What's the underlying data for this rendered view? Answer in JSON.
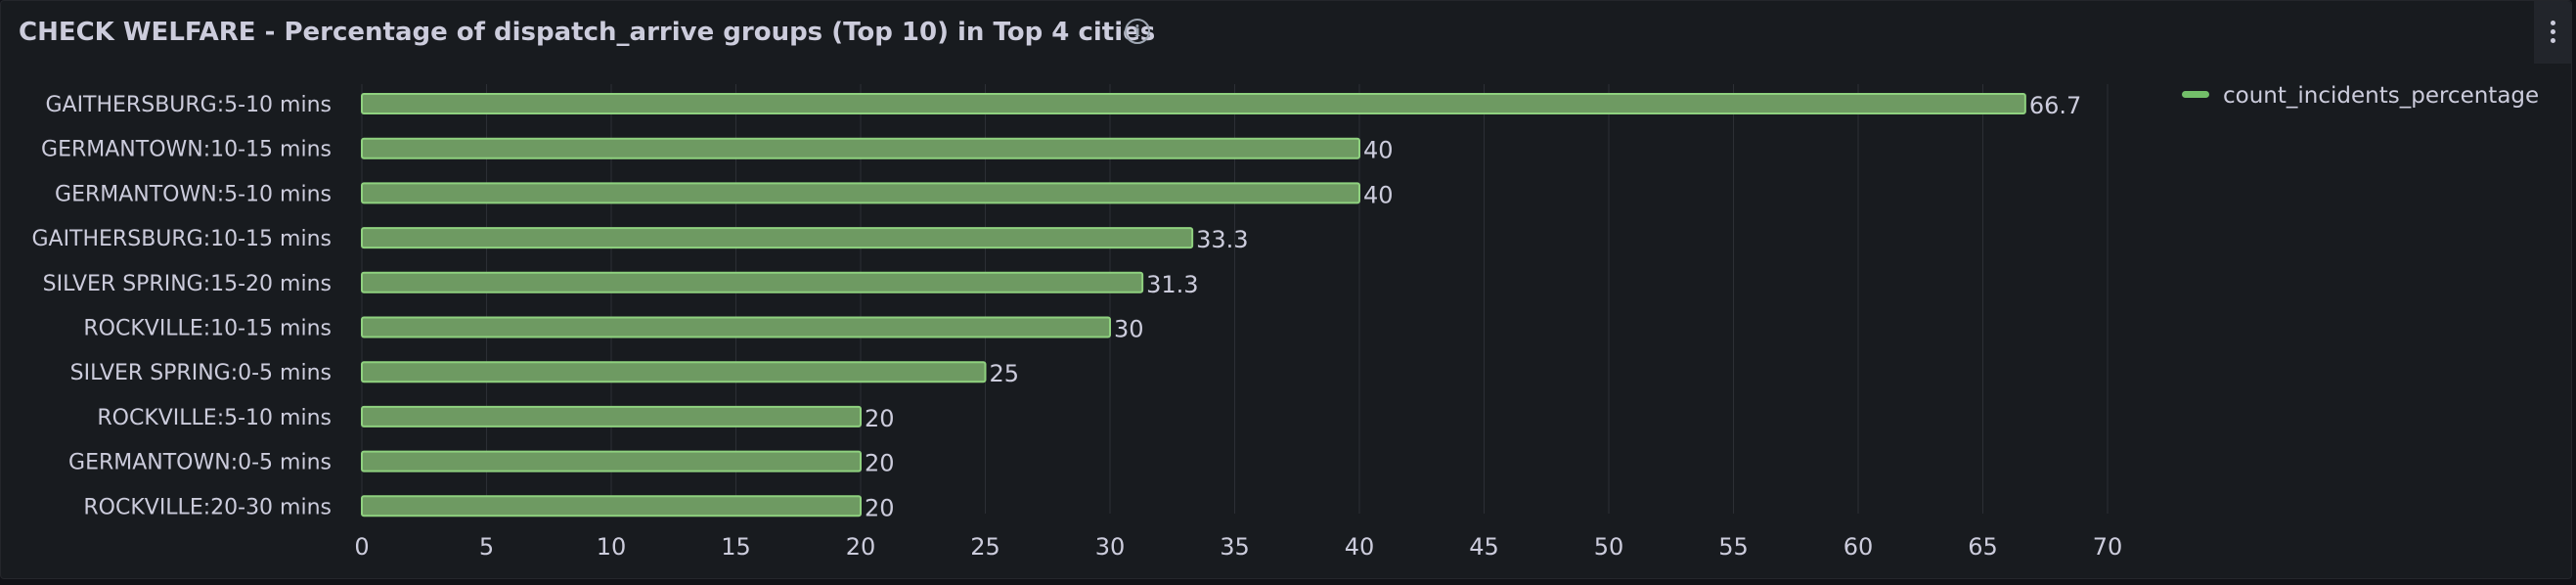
{
  "panel": {
    "title": "CHECK WELFARE - Percentage of dispatch_arrive groups (Top 10) in Top 4 cities",
    "info_icon": "info-icon",
    "menu_icon": "kebab-menu-icon"
  },
  "chart_data": {
    "type": "bar",
    "orientation": "horizontal",
    "categories": [
      "GAITHERSBURG:5-10 mins",
      "GERMANTOWN:10-15 mins",
      "GERMANTOWN:5-10 mins",
      "GAITHERSBURG:10-15 mins",
      "SILVER SPRING:15-20 mins",
      "ROCKVILLE:10-15 mins",
      "SILVER SPRING:0-5 mins",
      "ROCKVILLE:5-10 mins",
      "GERMANTOWN:0-5 mins",
      "ROCKVILLE:20-30 mins"
    ],
    "series": [
      {
        "name": "count_incidents_percentage",
        "values": [
          66.7,
          40,
          40,
          33.3,
          31.3,
          30,
          25,
          20,
          20,
          20
        ],
        "value_labels": [
          "66.7",
          "40",
          "40",
          "33.3",
          "31.3",
          "30",
          "25",
          "20",
          "20",
          "20"
        ],
        "color": "#73bf69"
      }
    ],
    "xlim": [
      0,
      70
    ],
    "xticks": [
      0,
      5,
      10,
      15,
      20,
      25,
      30,
      35,
      40,
      45,
      50,
      55,
      60,
      65,
      70
    ],
    "grid": true,
    "legend_position": "top-right"
  }
}
